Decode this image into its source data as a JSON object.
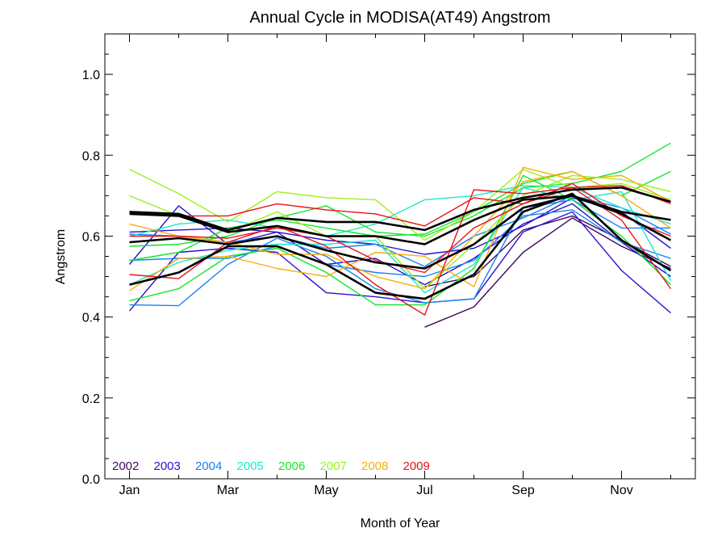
{
  "chart_data": {
    "type": "line",
    "title": "Annual Cycle in MODISA(AT49) Angstrom",
    "xlabel": "Month of Year",
    "ylabel": "Angstrom",
    "xlim": [
      0.5,
      12.5
    ],
    "ylim": [
      0.0,
      1.1
    ],
    "x": [
      1,
      2,
      3,
      4,
      5,
      6,
      7,
      8,
      9,
      10,
      11,
      12
    ],
    "x_ticks": [
      {
        "value": 1,
        "label": "Jan"
      },
      {
        "value": 3,
        "label": "Mar"
      },
      {
        "value": 5,
        "label": "May"
      },
      {
        "value": 7,
        "label": "Jul"
      },
      {
        "value": 9,
        "label": "Sep"
      },
      {
        "value": 11,
        "label": "Nov"
      }
    ],
    "y_ticks": [
      {
        "value": 0.0,
        "label": "0.0"
      },
      {
        "value": 0.2,
        "label": "0.2"
      },
      {
        "value": 0.4,
        "label": "0.4"
      },
      {
        "value": 0.6,
        "label": "0.6"
      },
      {
        "value": 0.8,
        "label": "0.8"
      },
      {
        "value": 1.0,
        "label": "1.0"
      }
    ],
    "grid": false,
    "legend": {
      "position": "bottom-left",
      "entries": [
        {
          "label": "2002",
          "color": "#3d0a5a"
        },
        {
          "label": "2003",
          "color": "#2a10cf"
        },
        {
          "label": "2004",
          "color": "#1a82f0"
        },
        {
          "label": "2005",
          "color": "#1ee8c8"
        },
        {
          "label": "2006",
          "color": "#14e62a"
        },
        {
          "label": "2007",
          "color": "#9cf020"
        },
        {
          "label": "2008",
          "color": "#f5ae0a"
        },
        {
          "label": "2009",
          "color": "#e8121a"
        }
      ]
    },
    "series": [
      {
        "year": "2002",
        "color": "#3d0a5a",
        "values": [
          null,
          null,
          null,
          null,
          null,
          null,
          0.375,
          0.425,
          0.56,
          0.645,
          0.575,
          0.52
        ]
      },
      {
        "year": "2002",
        "color": "#3d0a5a",
        "values": [
          null,
          null,
          null,
          null,
          null,
          null,
          0.475,
          0.5,
          0.615,
          0.65,
          0.59,
          0.525
        ]
      },
      {
        "year": "2003",
        "color": "#2a10cf",
        "values": [
          0.415,
          0.56,
          0.57,
          0.56,
          0.46,
          0.45,
          0.435,
          0.445,
          0.61,
          0.66,
          0.515,
          0.41
        ]
      },
      {
        "year": "2003",
        "color": "#2a10cf",
        "values": [
          0.53,
          0.675,
          0.58,
          0.61,
          0.53,
          0.545,
          0.48,
          0.545,
          0.63,
          0.68,
          0.585,
          0.5
        ]
      },
      {
        "year": "2003",
        "color": "#2a10cf",
        "values": [
          0.61,
          0.615,
          0.62,
          0.61,
          0.59,
          0.58,
          0.555,
          0.57,
          0.625,
          0.695,
          0.66,
          0.57
        ]
      },
      {
        "year": "2004",
        "color": "#1a82f0",
        "values": [
          0.43,
          0.428,
          0.53,
          0.595,
          0.55,
          0.47,
          0.435,
          0.445,
          0.67,
          0.69,
          0.62,
          0.62
        ]
      },
      {
        "year": "2004",
        "color": "#1a82f0",
        "values": [
          0.54,
          0.545,
          0.545,
          0.575,
          0.53,
          0.51,
          0.5,
          0.54,
          0.65,
          0.665,
          0.585,
          0.545
        ]
      },
      {
        "year": "2004",
        "color": "#1a82f0",
        "values": [
          0.605,
          0.6,
          0.585,
          0.6,
          0.57,
          0.58,
          0.525,
          0.6,
          0.645,
          0.7,
          0.67,
          0.605
        ]
      },
      {
        "year": "2005",
        "color": "#1ee8c8",
        "values": [
          0.48,
          0.535,
          0.565,
          0.58,
          0.58,
          0.59,
          0.46,
          0.53,
          0.72,
          0.69,
          0.71,
          0.49
        ]
      },
      {
        "year": "2005",
        "color": "#1ee8c8",
        "values": [
          0.6,
          0.63,
          0.64,
          0.62,
          0.6,
          0.63,
          0.69,
          0.7,
          0.725,
          0.72,
          0.67,
          0.63
        ]
      },
      {
        "year": "2006",
        "color": "#14e62a",
        "values": [
          0.44,
          0.47,
          0.55,
          0.57,
          0.51,
          0.43,
          0.43,
          0.52,
          0.75,
          0.69,
          0.6,
          0.48
        ]
      },
      {
        "year": "2006",
        "color": "#14e62a",
        "values": [
          0.575,
          0.58,
          0.6,
          0.645,
          0.675,
          0.61,
          0.6,
          0.65,
          0.72,
          0.73,
          0.76,
          0.83
        ]
      },
      {
        "year": "2006",
        "color": "#14e62a",
        "values": [
          0.54,
          0.56,
          0.62,
          0.64,
          0.62,
          0.6,
          0.605,
          0.66,
          0.73,
          0.76,
          0.7,
          0.76
        ]
      },
      {
        "year": "2007",
        "color": "#9cf020",
        "values": [
          0.765,
          0.705,
          0.635,
          0.71,
          0.695,
          0.69,
          0.59,
          0.66,
          0.765,
          0.72,
          0.73,
          0.69
        ]
      },
      {
        "year": "2007",
        "color": "#9cf020",
        "values": [
          0.7,
          0.65,
          0.61,
          0.66,
          0.6,
          0.6,
          0.47,
          0.58,
          0.7,
          0.75,
          0.74,
          0.71
        ]
      },
      {
        "year": "2008",
        "color": "#f5ae0a",
        "values": [
          0.465,
          0.545,
          0.55,
          0.52,
          0.5,
          0.56,
          0.55,
          0.475,
          0.77,
          0.74,
          0.75,
          0.685
        ]
      },
      {
        "year": "2008",
        "color": "#f5ae0a",
        "values": [
          0.63,
          0.6,
          0.585,
          0.555,
          0.555,
          0.5,
          0.47,
          0.6,
          0.735,
          0.76,
          0.7,
          0.62
        ]
      },
      {
        "year": "2009",
        "color": "#e8121a",
        "values": [
          0.505,
          0.495,
          0.585,
          0.625,
          0.575,
          0.48,
          0.405,
          0.715,
          0.705,
          0.72,
          0.64,
          0.47
        ]
      },
      {
        "year": "2009",
        "color": "#e8121a",
        "values": [
          0.6,
          0.6,
          0.595,
          0.62,
          0.6,
          0.54,
          0.51,
          0.62,
          0.68,
          0.72,
          0.725,
          0.68
        ]
      },
      {
        "year": "2009",
        "color": "#e8121a",
        "values": [
          0.655,
          0.65,
          0.65,
          0.68,
          0.665,
          0.655,
          0.625,
          0.695,
          0.68,
          0.73,
          0.65,
          0.6
        ]
      },
      {
        "name": "",
        "color": "#000000",
        "mean": true,
        "values": [
          0.48,
          0.51,
          0.575,
          0.575,
          0.53,
          0.46,
          0.445,
          0.505,
          0.66,
          0.705,
          0.59,
          0.515
        ]
      },
      {
        "name": "",
        "color": "#000000",
        "mean": true,
        "values": [
          0.585,
          0.595,
          0.58,
          0.6,
          0.565,
          0.535,
          0.52,
          0.58,
          0.67,
          0.7,
          0.655,
          0.59
        ]
      },
      {
        "name": "",
        "color": "#000000",
        "mean": true,
        "values": [
          0.66,
          0.655,
          0.615,
          0.645,
          0.635,
          0.635,
          0.615,
          0.665,
          0.695,
          0.715,
          0.72,
          0.685
        ]
      },
      {
        "name": "",
        "color": "#000000",
        "mean": true,
        "values": [
          0.655,
          0.65,
          0.61,
          0.625,
          0.6,
          0.6,
          0.58,
          0.64,
          0.69,
          0.7,
          0.66,
          0.64
        ]
      }
    ]
  }
}
